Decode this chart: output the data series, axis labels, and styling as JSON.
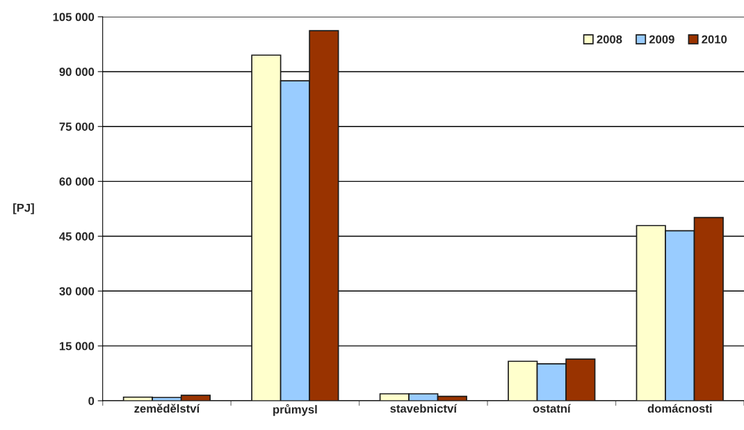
{
  "chart_data": {
    "type": "bar",
    "ylabel": "[PJ]",
    "categories": [
      "zemědělství",
      "průmysl",
      "stavebnictví",
      "ostatní",
      "domácnosti"
    ],
    "series": [
      {
        "name": "2008",
        "color": "#ffffcc",
        "values": [
          1000,
          94500,
          1900,
          10800,
          47900
        ]
      },
      {
        "name": "2009",
        "color": "#99ccff",
        "values": [
          900,
          87500,
          1900,
          10100,
          46500
        ]
      },
      {
        "name": "2010",
        "color": "#993300",
        "values": [
          1500,
          101200,
          1200,
          11400,
          50100
        ]
      }
    ],
    "ylim": [
      0,
      105000
    ],
    "yticks": [
      {
        "value": 0,
        "label": "0"
      },
      {
        "value": 15000,
        "label": "15 000"
      },
      {
        "value": 30000,
        "label": "30 000"
      },
      {
        "value": 45000,
        "label": "45 000"
      },
      {
        "value": 60000,
        "label": "60 000"
      },
      {
        "value": 75000,
        "label": "75 000"
      },
      {
        "value": 90000,
        "label": "90 000"
      },
      {
        "value": 105000,
        "label": "105 000"
      }
    ],
    "grid": "y",
    "legend": "top right"
  }
}
